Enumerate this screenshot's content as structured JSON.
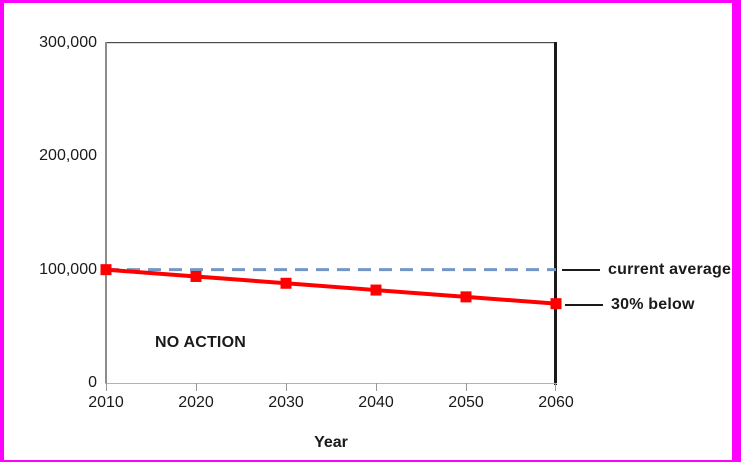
{
  "frame": {
    "border_color": "#ff00ff"
  },
  "chart_data": {
    "type": "line",
    "title": "",
    "xlabel": "Year",
    "ylabel": "",
    "x": [
      2010,
      2020,
      2030,
      2040,
      2050,
      2060
    ],
    "x_tick_labels": [
      "2010",
      "2020",
      "2030",
      "2040",
      "2050",
      "2060"
    ],
    "y_ticks_top_to_bottom": [
      300000,
      200000,
      100000,
      0
    ],
    "y_tick_labels": [
      "300,000",
      "200,000",
      "100,000",
      "0"
    ],
    "ylim": [
      0,
      300000
    ],
    "grid": false,
    "legend_position": "right-outside-leader-labels",
    "series": [
      {
        "name": "current average",
        "values": [
          100000,
          100000,
          100000,
          100000,
          100000,
          100000
        ],
        "color": "#7396c6",
        "style": "dashed",
        "marker": "none"
      },
      {
        "name": "30% below",
        "values": [
          100000,
          94000,
          88000,
          82000,
          76000,
          70000
        ],
        "color": "#ff0000",
        "style": "solid",
        "marker": "square"
      }
    ],
    "annotations": [
      {
        "text": "NO ACTION",
        "location": "inside-plot-lower-left"
      },
      {
        "text": "current average",
        "location": "right-of-plot-at-100000"
      },
      {
        "text": "30% below",
        "location": "right-of-plot-at-70000"
      }
    ]
  }
}
